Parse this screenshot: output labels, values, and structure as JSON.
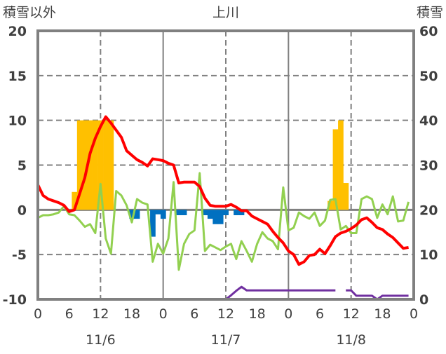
{
  "chart_data": {
    "type": "bar+line",
    "title": "上川",
    "ylabel_left": "積雪以外",
    "ylabel_right": "積雪",
    "ylim_left": [
      -10,
      20
    ],
    "ylim_right": [
      0,
      60
    ],
    "yticks_left": [
      "20",
      "15",
      "10",
      "5",
      "0",
      "-5",
      "-10"
    ],
    "yticks_right": [
      "60",
      "50",
      "40",
      "30",
      "20",
      "10",
      "0"
    ],
    "xticks": [
      "0",
      "6",
      "12",
      "18",
      "0",
      "6",
      "12",
      "18",
      "0",
      "6",
      "12",
      "18",
      "0"
    ],
    "dates": [
      "11/6",
      "11/7",
      "11/8"
    ],
    "x_hours_range": [
      0,
      72
    ],
    "grid": true,
    "colors": {
      "snow_increase": "#FFC000",
      "snow_decrease": "#0070C0",
      "red_series": "#FF0000",
      "green_series": "#92D050",
      "snow_depth": "#7030A0",
      "axis": "#808080"
    },
    "bars": [
      {
        "hour": 7,
        "value": 2
      },
      {
        "hour": 8,
        "value": 10
      },
      {
        "hour": 9,
        "value": 10
      },
      {
        "hour": 10,
        "value": 10
      },
      {
        "hour": 11,
        "value": 10
      },
      {
        "hour": 12,
        "value": 10
      },
      {
        "hour": 13,
        "value": 10
      },
      {
        "hour": 14,
        "value": 10
      },
      {
        "hour": 18,
        "value": -1
      },
      {
        "hour": 19,
        "value": -1
      },
      {
        "hour": 22,
        "value": -3
      },
      {
        "hour": 23,
        "value": -0.5
      },
      {
        "hour": 24,
        "value": -1
      },
      {
        "hour": 27,
        "value": -0.6
      },
      {
        "hour": 28,
        "value": -0.6
      },
      {
        "hour": 32,
        "value": -0.6
      },
      {
        "hour": 33,
        "value": -1
      },
      {
        "hour": 34,
        "value": -1.6
      },
      {
        "hour": 35,
        "value": -1.6
      },
      {
        "hour": 36,
        "value": -0.6
      },
      {
        "hour": 38,
        "value": -0.6
      },
      {
        "hour": 39,
        "value": -0.6
      },
      {
        "hour": 56,
        "value": 1
      },
      {
        "hour": 57,
        "value": 9
      },
      {
        "hour": 58,
        "value": 10
      },
      {
        "hour": 59,
        "value": 3
      }
    ],
    "red_series": [
      2.8,
      1.6,
      1.2,
      1.0,
      0.8,
      0.5,
      -0.2,
      0,
      1.8,
      3.6,
      6.3,
      8,
      9.3,
      10.4,
      9.7,
      8.9,
      8.1,
      6.6,
      6.1,
      5.6,
      5.3,
      4.9,
      5.7,
      5.6,
      5.5,
      5.2,
      5.0,
      3.0,
      3.1,
      3.1,
      3.1,
      2.6,
      1.3,
      0.5,
      0.4,
      0.4,
      0.4,
      0.6,
      0.3,
      -0.1,
      -0.1,
      -0.7,
      -1.0,
      -1.3,
      -1.6,
      -2.4,
      -3.1,
      -3.7,
      -4.6,
      -5.0,
      -6.1,
      -5.8,
      -5.1,
      -5.0,
      -4.4,
      -4.9,
      -4.0,
      -3.0,
      -2.6,
      -2.4,
      -2.1,
      -1.7,
      -1.1,
      -0.9,
      -1.4,
      -2.0,
      -2.2,
      -2.7,
      -3.1,
      -3.7,
      -4.3,
      -4.2
    ],
    "green_series": [
      -0.9,
      -0.6,
      -0.6,
      -0.5,
      -0.3,
      0.4,
      -0.5,
      -0.6,
      -1.2,
      -1.9,
      -1.6,
      -2.6,
      2.9,
      -3.2,
      -4.9,
      2.1,
      1.6,
      0.5,
      -1.4,
      1.2,
      0.8,
      0.6,
      -5.8,
      -3.8,
      -4.9,
      -3.2,
      3.1,
      -6.7,
      -3.8,
      -2.7,
      -2.3,
      4.1,
      -4.6,
      -3.9,
      -4.2,
      -4.5,
      -4.1,
      -3.8,
      -5.5,
      -3.5,
      -4.6,
      -5.8,
      -3.8,
      -2.5,
      -3.2,
      -3.5,
      -4.4,
      2.5,
      -2.3,
      -2,
      -0.3,
      -0.7,
      -1,
      -0.3,
      -1.8,
      -1.2,
      1.1,
      1.2,
      -2.2,
      -1.8,
      -2.6,
      -2.6,
      1.2,
      1.5,
      1.2,
      -0.9,
      0.6,
      -0.5,
      1.5,
      -1.3,
      -1.2,
      0.9
    ],
    "snow_depth_series": [
      0,
      0,
      0,
      0,
      0,
      0,
      0,
      0,
      0,
      0,
      0,
      0,
      0,
      0,
      0,
      0,
      0,
      0,
      0,
      0,
      0,
      0,
      0,
      0,
      0,
      0,
      0,
      0,
      0,
      0,
      0,
      0,
      0,
      0,
      0,
      0,
      0,
      0.9,
      1.9,
      2.8,
      2,
      2,
      2,
      2,
      2,
      2,
      2,
      2,
      2,
      2,
      2,
      2,
      2,
      2,
      2,
      2,
      2,
      2,
      null,
      2,
      2,
      0.8,
      0.8,
      0.8,
      0.8,
      0,
      0.8,
      0.8,
      0.8,
      0.8,
      0.8,
      0.8
    ]
  }
}
